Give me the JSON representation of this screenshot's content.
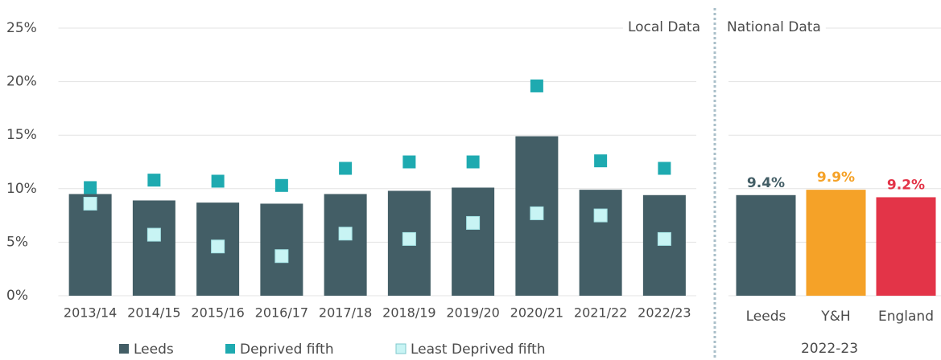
{
  "chart_data": [
    {
      "type": "bar",
      "annotation": "Local Data",
      "categories": [
        "2013/14",
        "2014/15",
        "2015/16",
        "2016/17",
        "2017/18",
        "2018/19",
        "2019/20",
        "2020/21",
        "2021/22",
        "2022/23"
      ],
      "series": [
        {
          "name": "Leeds",
          "color": "#435e66",
          "kind": "bar",
          "values": [
            9.5,
            8.9,
            8.7,
            8.6,
            9.5,
            9.8,
            10.1,
            14.9,
            9.9,
            9.4
          ]
        },
        {
          "name": "Deprived fifth",
          "color": "#1eaab0",
          "kind": "marker",
          "values": [
            10.1,
            10.8,
            10.7,
            10.3,
            11.9,
            12.5,
            12.5,
            19.6,
            12.6,
            11.9
          ]
        },
        {
          "name": "Least Deprived fifth",
          "color": "#c8f4f4",
          "kind": "marker",
          "values": [
            8.6,
            5.7,
            4.6,
            3.7,
            5.8,
            5.3,
            6.8,
            7.7,
            7.5,
            5.3
          ]
        }
      ],
      "ylim": [
        0,
        25
      ],
      "yticks": [
        {
          "value": 0,
          "label": "0%"
        },
        {
          "value": 5,
          "label": "5%"
        },
        {
          "value": 10,
          "label": "10%"
        },
        {
          "value": 15,
          "label": "15%"
        },
        {
          "value": 20,
          "label": "20%"
        },
        {
          "value": 25,
          "label": "25%"
        }
      ],
      "grid": true,
      "legend": "bottom"
    },
    {
      "type": "bar",
      "annotation": "National Data",
      "x_label": "2022-23",
      "categories": [
        "Leeds",
        "Y&H",
        "England"
      ],
      "values": [
        9.4,
        9.9,
        9.2
      ],
      "value_labels": [
        "9.4%",
        "9.9%",
        "9.2%"
      ],
      "colors": [
        "#435e66",
        "#f5a228",
        "#e33448"
      ],
      "ylim": [
        0,
        25
      ],
      "yticks": [
        0,
        5,
        10,
        15,
        20,
        25
      ],
      "grid": true
    }
  ]
}
